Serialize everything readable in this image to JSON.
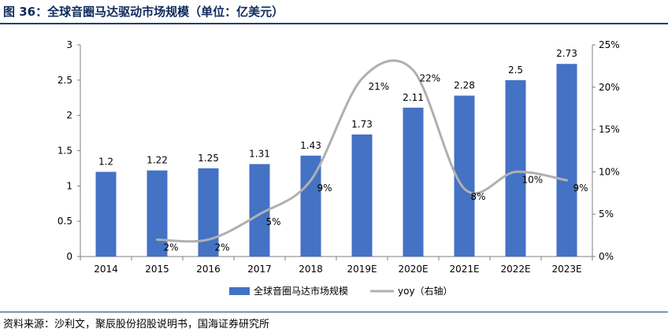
{
  "title": "图 36：全球音圈马达驱动市场规模（单位：亿美元）",
  "source": "资料来源：沙利文，聚辰股份招股说明书，国海证券研究所",
  "chart_data": {
    "type": "bar",
    "categories": [
      "2014",
      "2015",
      "2016",
      "2017",
      "2018",
      "2019E",
      "2020E",
      "2021E",
      "2022E",
      "2023E"
    ],
    "series": [
      {
        "name": "全球音圈马达市场规模",
        "type": "bar",
        "axis": "left",
        "color": "#4472c4",
        "values": [
          1.2,
          1.22,
          1.25,
          1.31,
          1.43,
          1.73,
          2.11,
          2.28,
          2.5,
          2.73
        ],
        "labels": [
          "1.2",
          "1.22",
          "1.25",
          "1.31",
          "1.43",
          "1.73",
          "2.11",
          "2.28",
          "2.5",
          "2.73"
        ]
      },
      {
        "name": "yoy（右轴）",
        "type": "line",
        "axis": "right",
        "color": "#b0b0b0",
        "values": [
          null,
          2,
          2,
          5,
          9,
          21,
          22,
          8,
          10,
          9
        ],
        "labels": [
          null,
          "2%",
          "2%",
          "5%",
          "9%",
          "21%",
          "22%",
          "8%",
          "10%",
          "9%"
        ]
      }
    ],
    "y_left": {
      "ylim": [
        0,
        3
      ],
      "ticks": [
        "0",
        "0.5",
        "1",
        "1.5",
        "2",
        "2.5",
        "3"
      ]
    },
    "y_right": {
      "ylim": [
        0,
        25
      ],
      "ticks": [
        "0%",
        "5%",
        "10%",
        "15%",
        "20%",
        "25%"
      ]
    },
    "legend_position": "bottom",
    "grid": false
  }
}
